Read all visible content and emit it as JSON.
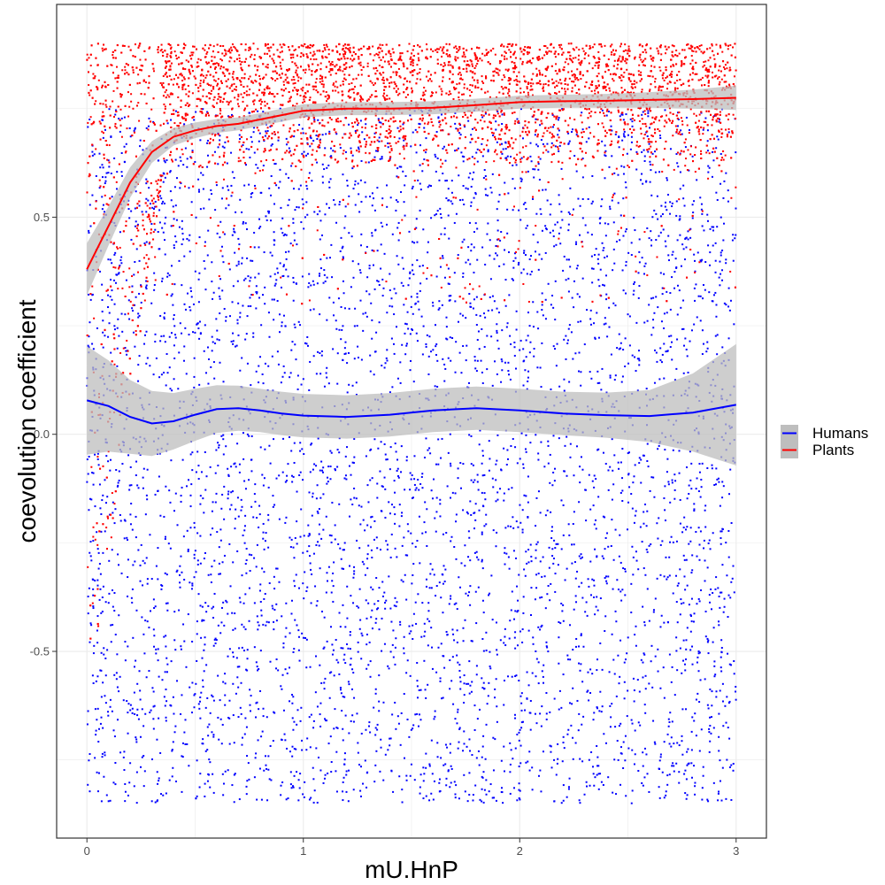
{
  "chart_data": {
    "type": "scatter",
    "xlabel": "mU.HnP",
    "ylabel": "coevolution coefficient",
    "xlim": [
      -0.14,
      3.14
    ],
    "ylim": [
      -0.93,
      0.99
    ],
    "xticks": [
      0,
      1,
      2,
      3
    ],
    "xtick_labels": [
      "0",
      "1",
      "2",
      "3"
    ],
    "yticks": [
      -0.5,
      0.0,
      0.5
    ],
    "ytick_labels": [
      "-0.5",
      "0.0",
      "0.5"
    ],
    "grid": true,
    "legend_position": "right",
    "series": [
      {
        "name": "Humans",
        "color": "#0000FF",
        "point_distribution": {
          "x_range": [
            0,
            3
          ],
          "y_range": [
            -0.85,
            0.75
          ],
          "approx_count": 5200
        },
        "smooth_x": [
          0.0,
          0.1,
          0.2,
          0.3,
          0.4,
          0.5,
          0.6,
          0.7,
          0.8,
          0.9,
          1.0,
          1.2,
          1.4,
          1.6,
          1.8,
          2.0,
          2.2,
          2.4,
          2.6,
          2.8,
          3.0
        ],
        "smooth_y": [
          0.078,
          0.065,
          0.04,
          0.025,
          0.03,
          0.045,
          0.058,
          0.06,
          0.055,
          0.048,
          0.043,
          0.04,
          0.045,
          0.055,
          0.06,
          0.055,
          0.048,
          0.044,
          0.042,
          0.05,
          0.068
        ],
        "band_half_width": [
          0.125,
          0.105,
          0.085,
          0.075,
          0.065,
          0.06,
          0.055,
          0.052,
          0.05,
          0.05,
          0.05,
          0.05,
          0.05,
          0.05,
          0.05,
          0.05,
          0.05,
          0.052,
          0.06,
          0.09,
          0.14
        ]
      },
      {
        "name": "Plants",
        "color": "#FF0000",
        "point_distribution": {
          "x_range": [
            0,
            3
          ],
          "y_range": [
            0.6,
            0.9
          ],
          "approx_count": 5400
        },
        "smooth_x": [
          0.0,
          0.1,
          0.2,
          0.3,
          0.4,
          0.5,
          0.6,
          0.7,
          0.8,
          0.9,
          1.0,
          1.2,
          1.4,
          1.6,
          1.8,
          2.0,
          2.2,
          2.4,
          2.6,
          2.8,
          3.0
        ],
        "smooth_y": [
          0.38,
          0.48,
          0.58,
          0.65,
          0.685,
          0.7,
          0.71,
          0.715,
          0.725,
          0.735,
          0.745,
          0.75,
          0.75,
          0.752,
          0.758,
          0.765,
          0.767,
          0.768,
          0.77,
          0.772,
          0.775
        ],
        "band_half_width": [
          0.06,
          0.045,
          0.035,
          0.025,
          0.02,
          0.018,
          0.016,
          0.015,
          0.015,
          0.015,
          0.015,
          0.015,
          0.015,
          0.015,
          0.015,
          0.015,
          0.015,
          0.016,
          0.018,
          0.022,
          0.028
        ]
      }
    ]
  },
  "colors": {
    "humans": "#0000FF",
    "plants": "#FF0000",
    "band": "#BEBEBE",
    "grid": "#EBEBEB",
    "panel_border": "#333333"
  }
}
